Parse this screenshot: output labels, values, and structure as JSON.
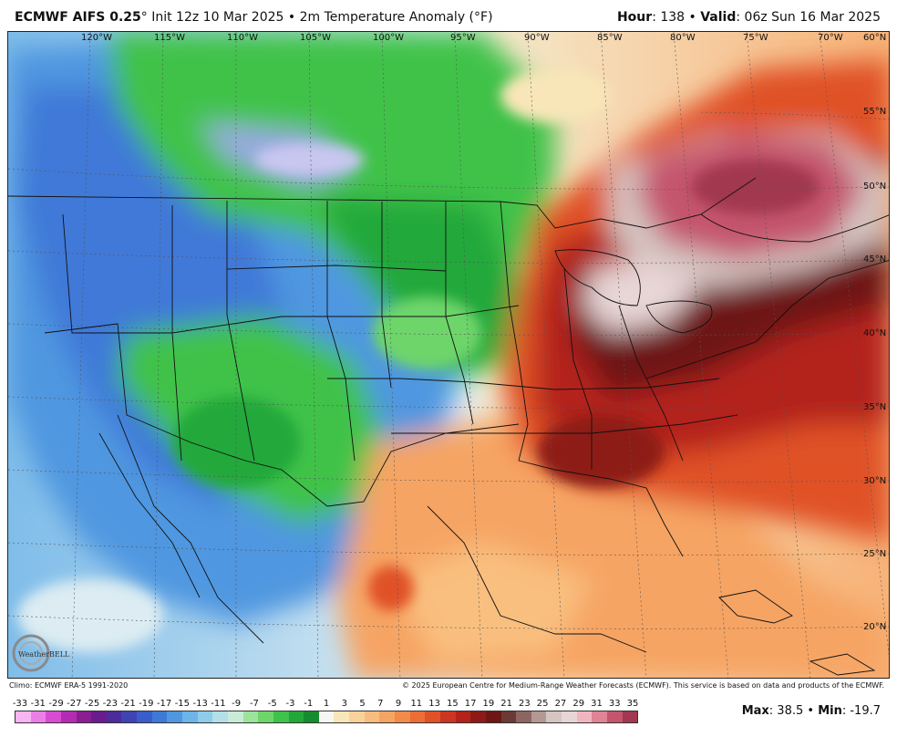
{
  "header": {
    "model": "ECMWF AIFS 0.25",
    "degree": "°",
    "init": " Init 12z 10 Mar 2025 • 2m Temperature Anomaly (°F)",
    "hour_label": "Hour",
    "hour_value": ": 138 • ",
    "valid_label": "Valid",
    "valid_value": ": 06z Sun 16 Mar 2025"
  },
  "map": {
    "lon_labels": [
      "120°W",
      "115°W",
      "110°W",
      "105°W",
      "100°W",
      "95°W",
      "90°W",
      "85°W",
      "80°W",
      "75°W",
      "70°W",
      "60°N"
    ],
    "lat_labels": [
      "55°N",
      "50°N",
      "45°N",
      "40°N",
      "35°N",
      "30°N",
      "25°N",
      "20°N"
    ]
  },
  "credits": {
    "climo": "Climo: ECMWF ERA-5 1991-2020",
    "copyright": "© 2025 European Centre for Medium-Range Weather Forecasts (ECMWF). This service is based on data and products of the ECMWF."
  },
  "legend": {
    "ticks": [
      "-33",
      "-31",
      "-29",
      "-27",
      "-25",
      "-23",
      "-21",
      "-19",
      "-17",
      "-15",
      "-13",
      "-11",
      "-9",
      "-7",
      "-5",
      "-3",
      "-1",
      "1",
      "3",
      "5",
      "7",
      "9",
      "11",
      "13",
      "15",
      "17",
      "19",
      "21",
      "23",
      "25",
      "27",
      "29",
      "31",
      "33",
      "35"
    ],
    "colors": [
      "#f9b4f2",
      "#ec7fe6",
      "#d94bd2",
      "#b42cb3",
      "#8a1f91",
      "#6a1c8f",
      "#4b2c9c",
      "#3f44b4",
      "#3a5dcc",
      "#3f79d8",
      "#4f97e0",
      "#6db5e8",
      "#8fcce9",
      "#b4dfe9",
      "#c8ecd7",
      "#9ee39a",
      "#6ed56a",
      "#3fc24a",
      "#22a83a",
      "#168c30",
      "#f6f6f2",
      "#f8e6b8",
      "#f9d29a",
      "#f8bd7e",
      "#f6a463",
      "#f28a4a",
      "#ec6d36",
      "#e05128",
      "#cc3620",
      "#b4221a",
      "#8e1a17",
      "#6e1614",
      "#6b3a36",
      "#8e6661",
      "#b49893",
      "#d5c4c1",
      "#e8d5d5",
      "#f0b6c0",
      "#e08394",
      "#c4556d",
      "#a2374f"
    ]
  },
  "stats": {
    "max_label": "Max",
    "max_value": ": 38.5 • ",
    "min_label": "Min",
    "min_value": ": -19.7"
  },
  "logo": {
    "text": "WeatherBELL"
  }
}
